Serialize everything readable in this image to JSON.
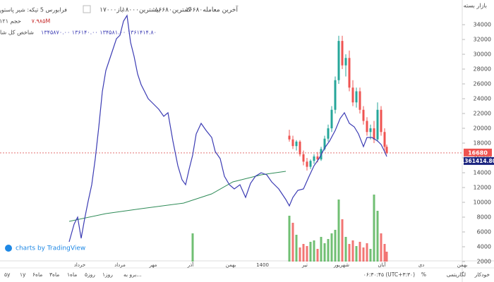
{
  "header": {
    "symbol": "فرابورس 5 تیکه: شیر پاستوریزه پگاه گیلان",
    "open": "۱۷۰۰۰باز",
    "high": "۱۸۰۰۰بیشترین",
    "low": "۱۶۶۸۰کمترین",
    "last": "۱۶۶۸۰آخرین معامله",
    "volume_label": "حجم ۱۲۱",
    "volume_value": "۷.۹۸۵M",
    "index_name": "شاخص کل شاخص",
    "index_values": "۱۳۴۵۸۷۰.۰۰  ۱۳۶۱۴۰.۰۰  ۱۳۴۵۸۱.۰۰  ۱۳۶۱۴۱۴.۸۰",
    "status": "بازار بسته",
    "watermark": "charts by TradingView"
  },
  "toolbar": {
    "left": [
      "۵y",
      "۱y",
      "۶ماه",
      "۳ماه",
      "۱ماه",
      "۵روز",
      "۱روز",
      "برو به..."
    ],
    "right": [
      "۰۶:۳۰:۴۵ (UTC+۳:۳۰)",
      "%",
      "لگاریتمی",
      "خودکار"
    ]
  },
  "chart_data": {
    "type": "candlestick",
    "time_labels": [
      "خرداد",
      "مرداد",
      "مهر",
      "آذر",
      "بهمن",
      "1400",
      "تیر",
      "شهریور",
      "آبان",
      "دی",
      "بهمن"
    ],
    "xlim": [
      0,
      655
    ],
    "ylim": [
      2000,
      34000
    ],
    "yticks": [
      2000,
      4000,
      6000,
      8000,
      10000,
      12000,
      14000,
      16000,
      18000,
      20000,
      22000,
      24000,
      26000,
      28000,
      30000,
      32000,
      34000
    ],
    "last_price": {
      "value": 16680,
      "label": "16680"
    },
    "index_last": "1361414.80",
    "index_line": {
      "name": "شاخص کل",
      "color": "#3c3cb4",
      "x": [
        98,
        105,
        110,
        115,
        120,
        125,
        130,
        135,
        140,
        145,
        150,
        155,
        160,
        165,
        170,
        175,
        180,
        185,
        190,
        195,
        200,
        205,
        210,
        215,
        220,
        225,
        232,
        238,
        245,
        252,
        258,
        263,
        268,
        273,
        278,
        285,
        292,
        300,
        305,
        312,
        318,
        325,
        332,
        340,
        348,
        355,
        362,
        370,
        378,
        385,
        395,
        405,
        410,
        415,
        422,
        430,
        438,
        445,
        452,
        460,
        467,
        475,
        482,
        488,
        495,
        502,
        508,
        515,
        520,
        527,
        535,
        540,
        545,
        548
      ],
      "values": [
        4670,
        7050,
        8000,
        5140,
        7810,
        10190,
        12380,
        15900,
        20190,
        24950,
        27810,
        29240,
        30670,
        32100,
        32570,
        34480,
        35240,
        31620,
        29710,
        27330,
        25900,
        24950,
        24000,
        23520,
        23050,
        22570,
        21620,
        22100,
        18290,
        14950,
        13050,
        12380,
        14480,
        16380,
        19240,
        20670,
        19710,
        18760,
        16860,
        15900,
        13520,
        12380,
        11810,
        12380,
        10670,
        12570,
        13520,
        14000,
        13710,
        12760,
        11810,
        10380,
        9520,
        10670,
        11620,
        11810,
        13520,
        14950,
        15900,
        17330,
        18290,
        19710,
        21330,
        22100,
        20670,
        20190,
        19240,
        17520,
        18760,
        18760,
        18290,
        17810,
        16860,
        16190
      ]
    },
    "avg_line": {
      "color": "#2e8b57",
      "x": [
        98,
        150,
        200,
        260,
        300,
        330,
        370,
        405
      ],
      "values": [
        7430,
        8480,
        9140,
        9900,
        11140,
        12760,
        13710,
        14190
      ]
    },
    "candles": {
      "up_color": "#26a69a",
      "down_color": "#ef5350",
      "x": [
        410,
        415,
        420,
        425,
        430,
        435,
        440,
        445,
        450,
        455,
        460,
        465,
        470,
        475,
        480,
        485,
        490,
        495,
        500,
        505,
        510,
        515,
        520,
        525,
        530,
        535,
        540,
        545,
        548
      ],
      "open": [
        19000,
        18500,
        17600,
        18200,
        16500,
        15500,
        14800,
        15600,
        16200,
        15800,
        17200,
        18600,
        20000,
        22500,
        26500,
        31800,
        28500,
        29500,
        25500,
        23500,
        25000,
        22500,
        21000,
        19500,
        20000,
        18500,
        22500,
        19500,
        17500
      ],
      "high": [
        19800,
        19000,
        18400,
        18400,
        17000,
        16000,
        15800,
        16500,
        16800,
        17500,
        19000,
        20500,
        23000,
        27000,
        32500,
        32500,
        30000,
        30500,
        26500,
        25500,
        25500,
        23000,
        21500,
        20500,
        21000,
        23500,
        23000,
        20000,
        17800
      ],
      "low": [
        18200,
        17200,
        17000,
        16200,
        15000,
        14300,
        14500,
        15200,
        15400,
        15600,
        17000,
        18200,
        19500,
        22000,
        26000,
        28000,
        27000,
        25000,
        23000,
        22800,
        22000,
        20500,
        19000,
        18500,
        18000,
        18200,
        19000,
        17000,
        16500
      ],
      "close": [
        18500,
        17600,
        18200,
        16500,
        15500,
        14800,
        15600,
        16200,
        15800,
        17200,
        18600,
        20000,
        22500,
        26500,
        31800,
        28500,
        29500,
        25500,
        23500,
        25000,
        22500,
        21000,
        19500,
        20000,
        18500,
        22500,
        19500,
        17500,
        16680
      ]
    },
    "volume": {
      "ylim": [
        0,
        100
      ],
      "x": [
        273,
        410,
        415,
        420,
        425,
        430,
        435,
        440,
        445,
        450,
        455,
        460,
        465,
        470,
        475,
        480,
        485,
        490,
        495,
        500,
        505,
        510,
        515,
        520,
        525,
        530,
        535,
        540,
        545,
        548
      ],
      "values": [
        40,
        65,
        55,
        38,
        20,
        25,
        22,
        28,
        30,
        18,
        35,
        26,
        32,
        40,
        45,
        88,
        60,
        35,
        25,
        30,
        22,
        28,
        20,
        26,
        18,
        95,
        72,
        40,
        25,
        14
      ],
      "colors": [
        "#4caf50",
        "#4caf50",
        "#ef5350",
        "#4caf50",
        "#ef5350",
        "#ef5350",
        "#ef5350",
        "#4caf50",
        "#4caf50",
        "#ef5350",
        "#4caf50",
        "#4caf50",
        "#4caf50",
        "#4caf50",
        "#4caf50",
        "#4caf50",
        "#ef5350",
        "#4caf50",
        "#ef5350",
        "#ef5350",
        "#4caf50",
        "#ef5350",
        "#ef5350",
        "#ef5350",
        "#4caf50",
        "#4caf50",
        "#4caf50",
        "#ef5350",
        "#ef5350",
        "#ef5350"
      ]
    }
  }
}
